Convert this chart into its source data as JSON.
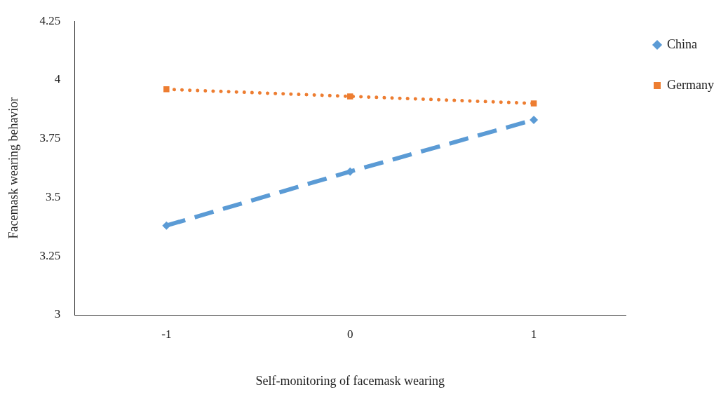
{
  "chart_data": {
    "type": "line",
    "xlabel": "Self-monitoring of facemask wearing",
    "ylabel": "Facemask wearing behavior",
    "categories": [
      "-1",
      "0",
      "1"
    ],
    "series": [
      {
        "name": "China",
        "color": "#5b9bd5",
        "values": [
          3.38,
          3.61,
          3.83
        ],
        "marker": "diamond",
        "line_style": "dashed"
      },
      {
        "name": "Germany",
        "color": "#ed7d31",
        "values": [
          3.96,
          3.93,
          3.9
        ],
        "marker": "square",
        "line_style": "dotted"
      }
    ],
    "ylim": [
      3,
      4.25
    ],
    "yticks": [
      3,
      3.25,
      3.5,
      3.75,
      4,
      4.25
    ],
    "grid": false,
    "legend": "top right"
  }
}
